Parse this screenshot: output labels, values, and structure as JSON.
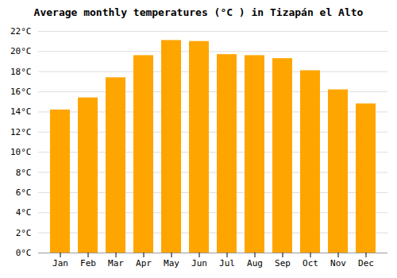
{
  "chart_data": {
    "type": "bar",
    "title": "Average monthly temperatures (°C ) in Tizapán el Alto",
    "categories": [
      "Jan",
      "Feb",
      "Mar",
      "Apr",
      "May",
      "Jun",
      "Jul",
      "Aug",
      "Sep",
      "Oct",
      "Nov",
      "Dec"
    ],
    "values": [
      14.2,
      15.4,
      17.4,
      19.6,
      21.1,
      21.0,
      19.7,
      19.6,
      19.3,
      18.1,
      16.2,
      14.8
    ],
    "color": "#FFA500",
    "ylim": [
      0,
      22
    ],
    "yticks": [
      {
        "value": 0,
        "label": "0°C"
      },
      {
        "value": 2,
        "label": "2°C"
      },
      {
        "value": 4,
        "label": "4°C"
      },
      {
        "value": 6,
        "label": "6°C"
      },
      {
        "value": 8,
        "label": "8°C"
      },
      {
        "value": 10,
        "label": "10°C"
      },
      {
        "value": 12,
        "label": "12°C"
      },
      {
        "value": 14,
        "label": "14°C"
      },
      {
        "value": 16,
        "label": "16°C"
      },
      {
        "value": 18,
        "label": "18°C"
      },
      {
        "value": 20,
        "label": "20°C"
      },
      {
        "value": 22,
        "label": "22°C"
      }
    ],
    "grid": true
  }
}
